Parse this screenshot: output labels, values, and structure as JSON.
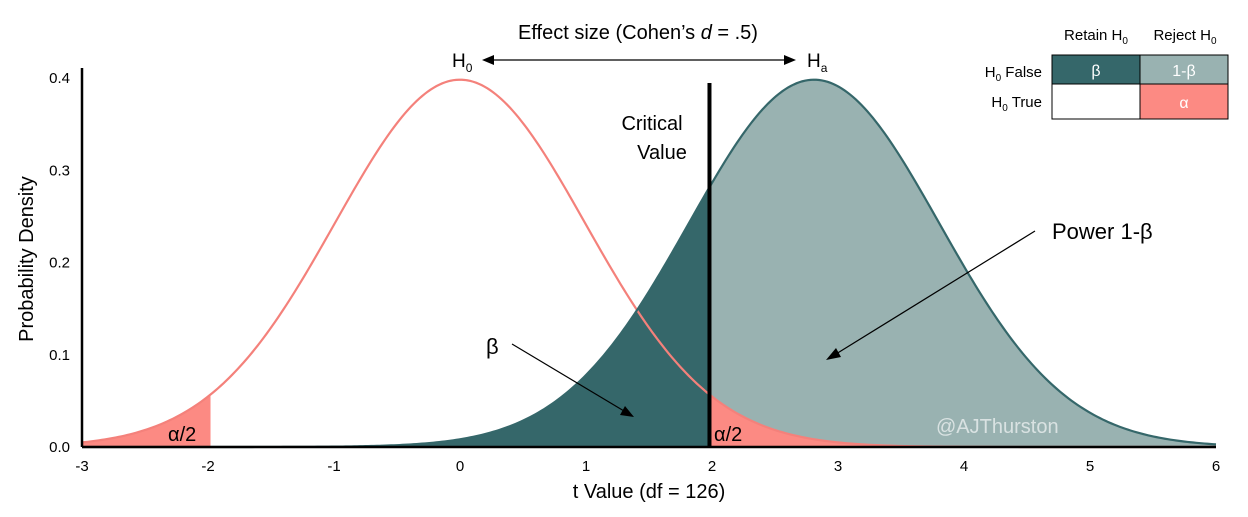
{
  "chart_data": {
    "type": "area",
    "title": "",
    "xlabel": "t Value (df = 126)",
    "ylabel": "Probability Density",
    "xlim": [
      -3,
      6
    ],
    "ylim": [
      0,
      0.4
    ],
    "x_ticks": [
      -3,
      -2,
      -1,
      0,
      1,
      2,
      3,
      4,
      5,
      6
    ],
    "y_ticks": [
      0.0,
      0.1,
      0.2,
      0.3,
      0.4
    ],
    "x_tick_labels": [
      "-3",
      "-2",
      "-1",
      "0",
      "1",
      "2",
      "3",
      "4",
      "5",
      "6"
    ],
    "y_tick_labels": [
      "0.0",
      "0.1",
      "0.2",
      "0.3",
      "0.4"
    ],
    "grid": false,
    "series": [
      {
        "name": "H0",
        "distribution": "t",
        "df": 126,
        "center": 0,
        "color": "#f4817b"
      },
      {
        "name": "Ha",
        "distribution": "t",
        "df": 126,
        "center": 2.81,
        "color": "#35676a"
      }
    ],
    "critical_value": 1.98,
    "alpha_lower_bound": -1.98,
    "colors": {
      "null_curve": "#f4817b",
      "alpha_fill": "#fc8a83",
      "beta_fill": "#35676a",
      "power_fill": "#99b2b1",
      "axis": "#000000"
    },
    "annotations": {
      "effect_size_prefix": "Effect size (Cohen’s ",
      "effect_size_d": "d",
      "effect_size_suffix": " = .5)",
      "h0_label": "H",
      "h0_sub": "0",
      "ha_label": "H",
      "ha_sub": "a",
      "critical_value_line1": "Critical",
      "critical_value_line2": "Value",
      "power_label": "Power 1-β",
      "beta_label": "β",
      "alpha_half_left": "α/2",
      "alpha_half_right": "α/2",
      "watermark": "@AJThurston"
    },
    "decision_table": {
      "col_headers": [
        {
          "text": "Retain H",
          "sub": "0"
        },
        {
          "text": "Reject H",
          "sub": "0"
        }
      ],
      "row_headers": [
        {
          "text": "H",
          "sub": "0",
          "suffix": " False"
        },
        {
          "text": "H",
          "sub": "0",
          "suffix": " True"
        }
      ],
      "cells": [
        [
          "β",
          "1-β"
        ],
        [
          "",
          "α"
        ]
      ],
      "cell_colors": [
        [
          "#35676a",
          "#99b2b1"
        ],
        [
          "#ffffff",
          "#fc8a83"
        ]
      ]
    }
  }
}
